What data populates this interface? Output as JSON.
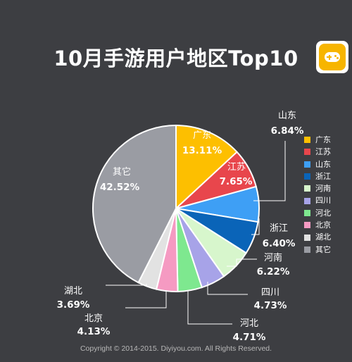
{
  "title": "10月手游用户地区Top10",
  "copyright": "Copyright © 2014-2015. Diyiyou.com. All Rights Reserved.",
  "chart_data": {
    "type": "pie",
    "title": "10月手游用户地区Top10",
    "legend_position": "right",
    "start_angle_deg": 0,
    "direction": "clockwise",
    "slices": [
      {
        "label": "广东",
        "value": 13.11,
        "value_text": "13.11%",
        "color": "#fdbf00"
      },
      {
        "label": "江苏",
        "value": 7.65,
        "value_text": "7.65%",
        "color": "#e8464c"
      },
      {
        "label": "山东",
        "value": 6.84,
        "value_text": "6.84%",
        "color": "#3e9ff5"
      },
      {
        "label": "浙江",
        "value": 6.4,
        "value_text": "6.40%",
        "color": "#0a64b8"
      },
      {
        "label": "河南",
        "value": 6.22,
        "value_text": "6.22%",
        "color": "#d7f6cc"
      },
      {
        "label": "四川",
        "value": 4.73,
        "value_text": "4.73%",
        "color": "#a7a3e8"
      },
      {
        "label": "河北",
        "value": 4.71,
        "value_text": "4.71%",
        "color": "#7ee88f"
      },
      {
        "label": "北京",
        "value": 4.13,
        "value_text": "4.13%",
        "color": "#f59ac2"
      },
      {
        "label": "湖北",
        "value": 3.69,
        "value_text": "3.69%",
        "color": "#e2e2e2"
      },
      {
        "label": "其它",
        "value": 42.52,
        "value_text": "42.52%",
        "color": "#9a9ca3"
      }
    ]
  }
}
